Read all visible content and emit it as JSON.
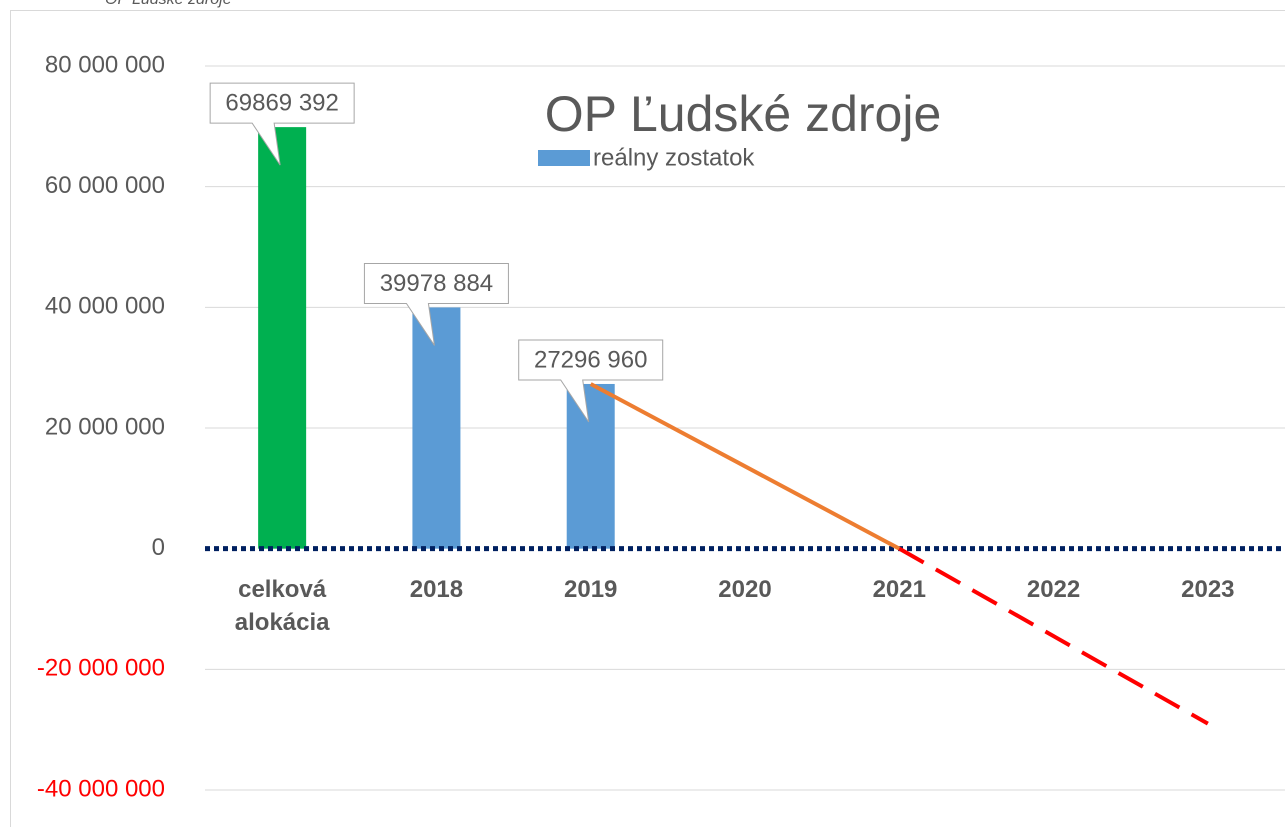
{
  "chart_data": {
    "type": "bar",
    "caption": "OP Ľudské zdroje",
    "title": "OP Ľudské zdroje",
    "categories": [
      "celková alokácia",
      "2018",
      "2019",
      "2020",
      "2021",
      "2022",
      "2023"
    ],
    "series": [
      {
        "name": "reálny zostatok",
        "color": "#5b9bd5",
        "point_colors": [
          "#00b050",
          "#5b9bd5",
          "#5b9bd5",
          "#5b9bd5",
          "#5b9bd5",
          "#5b9bd5",
          "#5b9bd5"
        ],
        "values": [
          69869392,
          39978884,
          27296960,
          null,
          null,
          null,
          null
        ],
        "value_labels": [
          "69869 392",
          "39978 884",
          "27296 960",
          null,
          null,
          null,
          null
        ]
      }
    ],
    "trend_lines": [
      {
        "color": "#ed7d31",
        "style": "solid",
        "values": [
          null,
          null,
          27296960,
          13648480,
          0,
          null,
          null
        ]
      },
      {
        "color": "#ff0000",
        "style": "dashed",
        "values": [
          null,
          null,
          null,
          null,
          0,
          -14500000,
          -29000000
        ]
      }
    ],
    "ylim": [
      -40000000,
      80000000
    ],
    "yticks": [
      {
        "value": -40000000,
        "label": "-40 000 000"
      },
      {
        "value": -20000000,
        "label": "-20 000 000"
      },
      0,
      {
        "value": 20000000,
        "label": "20 000 000"
      },
      {
        "value": 40000000,
        "label": "40 000 000"
      },
      {
        "value": 60000000,
        "label": "60 000 000"
      },
      {
        "value": 80000000,
        "label": "80 000 000"
      }
    ],
    "grid": true,
    "negative_tick_color": "#ff0000",
    "zero_line": {
      "color": "#002060",
      "style": "dotted"
    }
  }
}
